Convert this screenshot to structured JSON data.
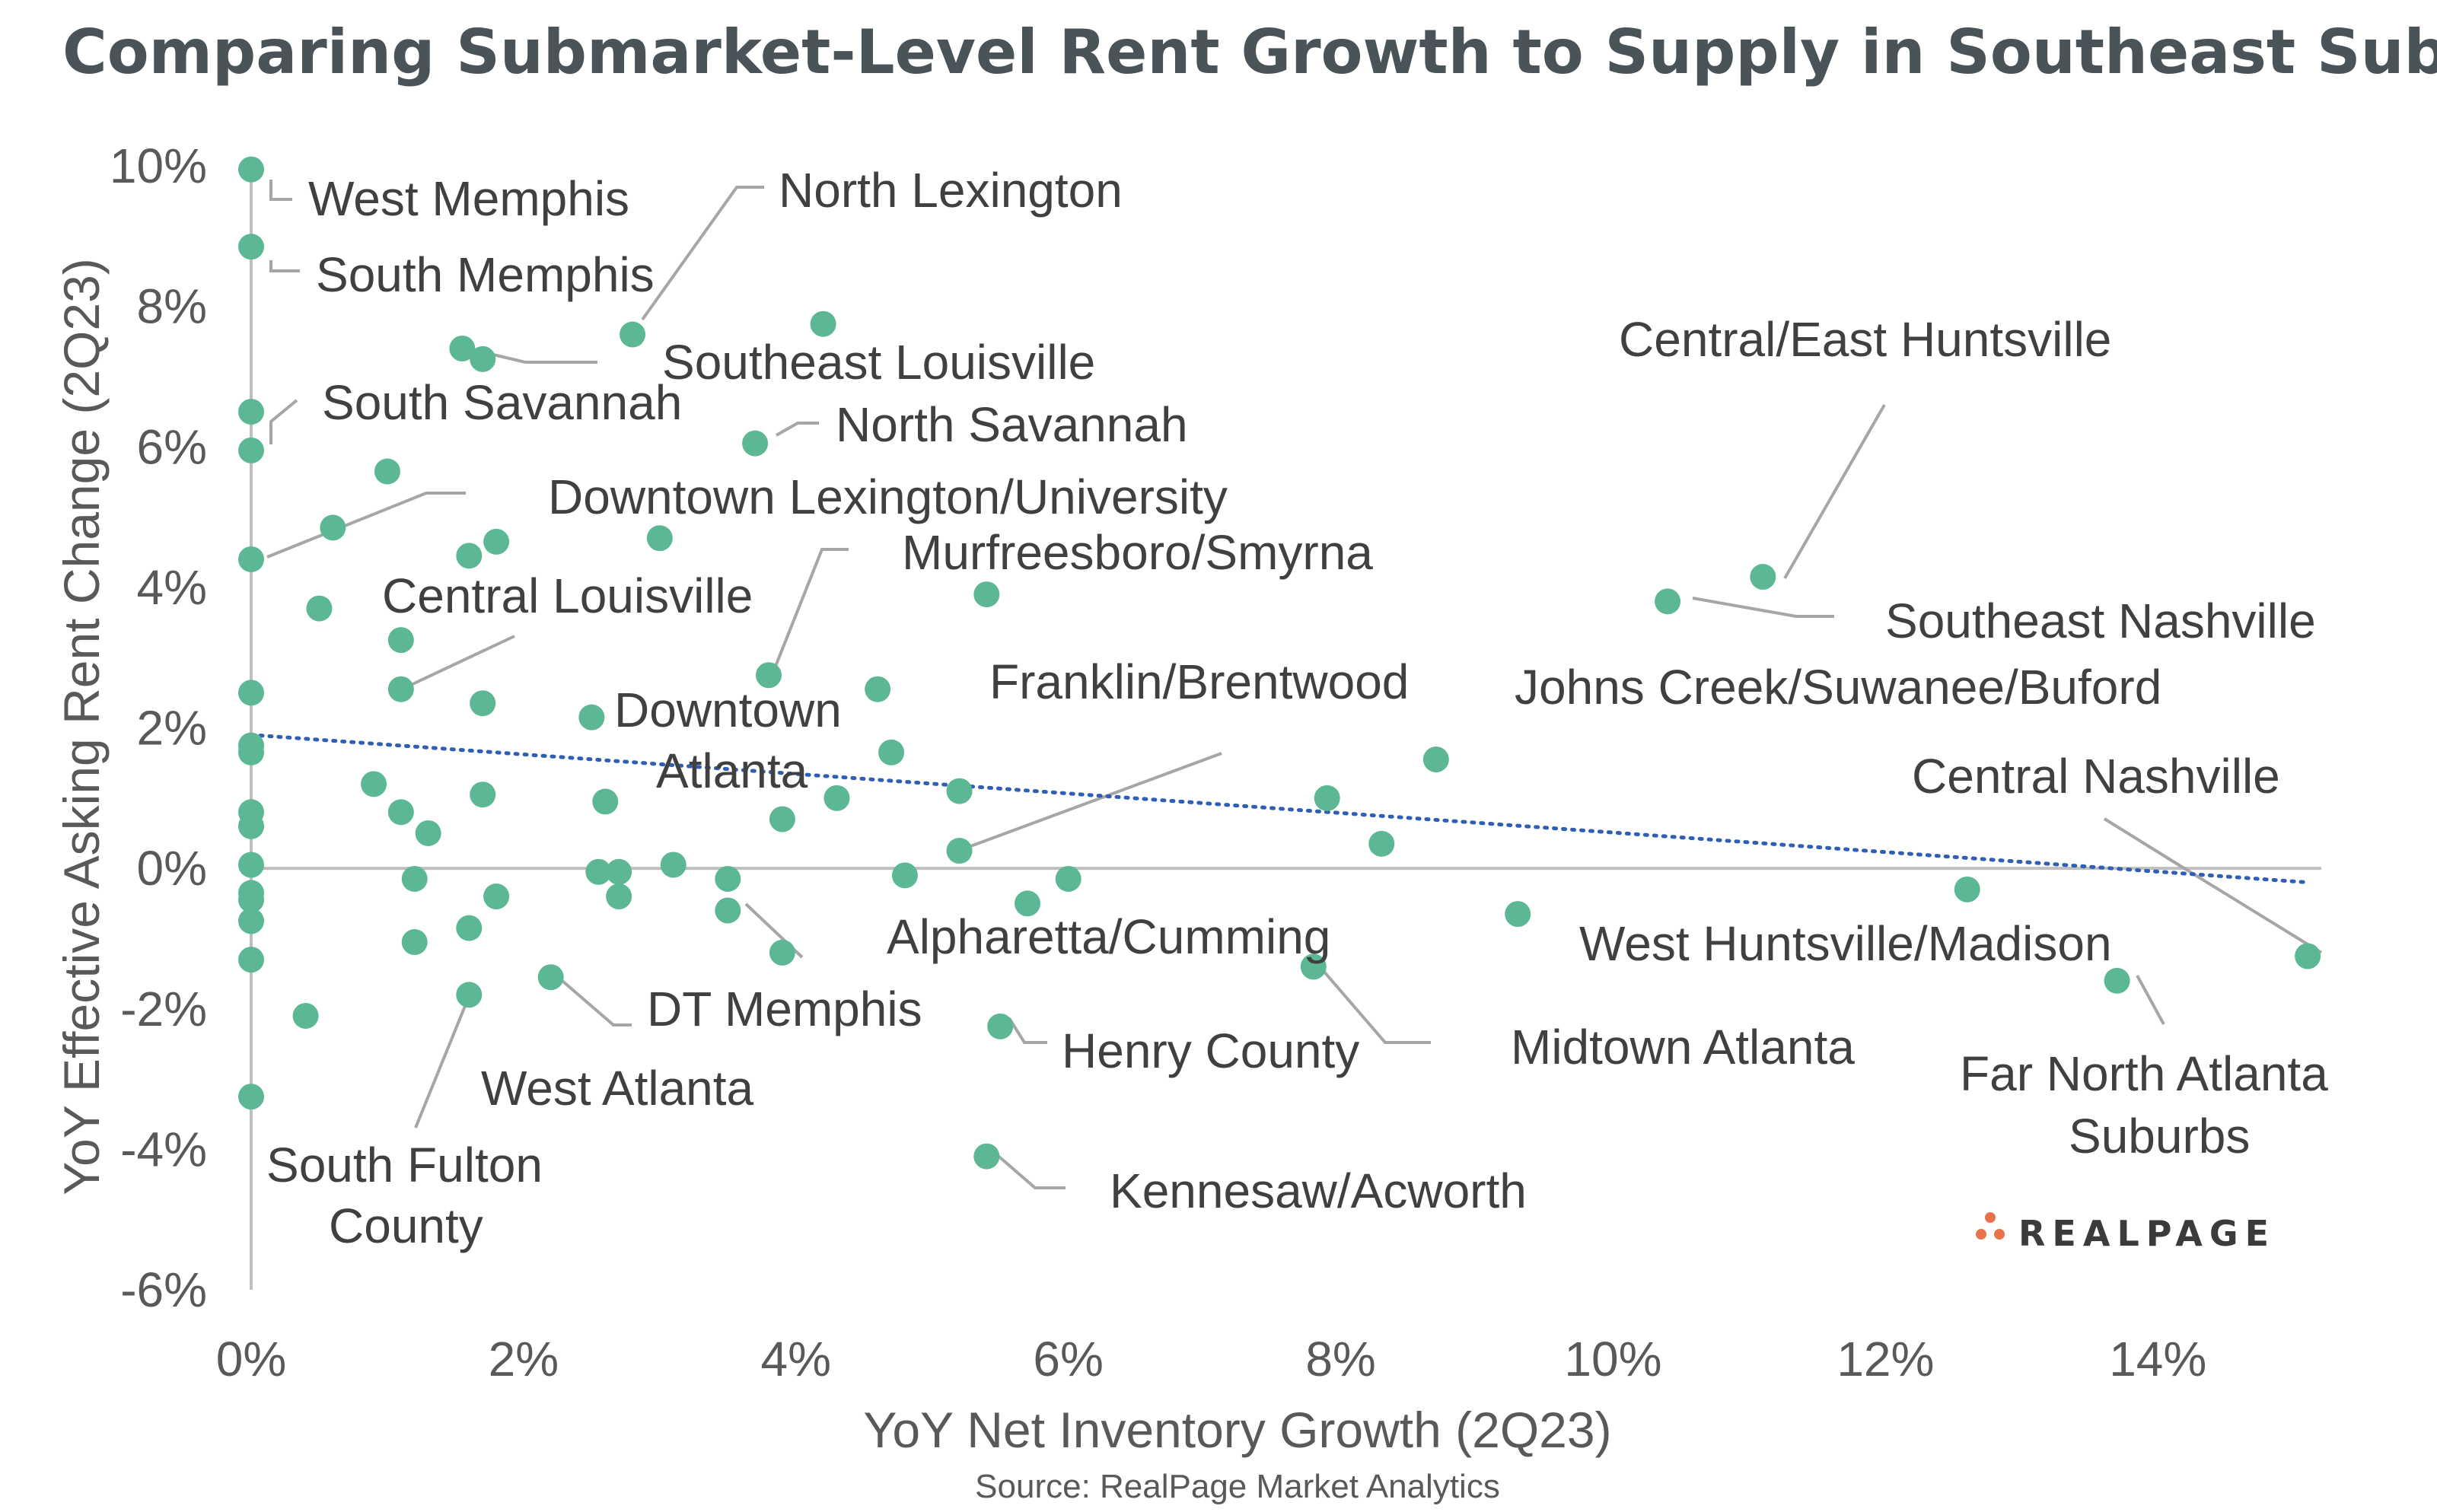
{
  "chart_data": {
    "type": "scatter",
    "title": "Comparing Submarket-Level Rent Growth to Supply in Southeast Submarkets",
    "xlabel": "YoY Net Inventory Growth (2Q23)",
    "ylabel": "YoY Effective Asking Rent Change (2Q23)",
    "source": "Source: RealPage Market Analytics",
    "brand": "REALPAGE",
    "xlim": [
      0,
      15.2
    ],
    "ylim": [
      -6,
      10
    ],
    "x_ticks": [
      0,
      2,
      4,
      6,
      8,
      10,
      12,
      14
    ],
    "y_ticks": [
      -6,
      -4,
      -2,
      0,
      2,
      4,
      6,
      8,
      10
    ],
    "x_tick_labels": [
      "0%",
      "2%",
      "4%",
      "6%",
      "8%",
      "10%",
      "12%",
      "14%"
    ],
    "y_tick_labels": [
      "-6%",
      "-4%",
      "-2%",
      "0%",
      "2%",
      "4%",
      "6%",
      "8%",
      "10%"
    ],
    "trendline": {
      "type": "linear",
      "x": [
        0,
        15.1
      ],
      "y": [
        1.9,
        -0.2
      ],
      "style": "dotted",
      "color": "#2f5fb3"
    },
    "colors": {
      "points": "#5cb894",
      "leader": "#a6a6a6",
      "zero_line": "#bfbfbf",
      "brand_dots": "#e8734a"
    },
    "points": [
      {
        "x": 0.0,
        "y": 9.95
      },
      {
        "x": 0.0,
        "y": 8.85
      },
      {
        "x": 0.0,
        "y": 6.5
      },
      {
        "x": 0.0,
        "y": 5.95
      },
      {
        "x": 0.0,
        "y": 4.4
      },
      {
        "x": 0.0,
        "y": 2.5
      },
      {
        "x": 0.0,
        "y": 1.75
      },
      {
        "x": 0.0,
        "y": 1.65
      },
      {
        "x": 0.0,
        "y": 0.8
      },
      {
        "x": 0.0,
        "y": 0.6
      },
      {
        "x": 0.0,
        "y": 0.05
      },
      {
        "x": 0.0,
        "y": -0.35
      },
      {
        "x": 0.0,
        "y": -0.45
      },
      {
        "x": 0.0,
        "y": -0.75
      },
      {
        "x": 0.0,
        "y": -1.3
      },
      {
        "x": 0.0,
        "y": -3.25
      },
      {
        "x": 0.4,
        "y": -2.1
      },
      {
        "x": 0.5,
        "y": 3.7
      },
      {
        "x": 0.6,
        "y": 4.85
      },
      {
        "x": 0.9,
        "y": 1.2
      },
      {
        "x": 1.0,
        "y": 5.65
      },
      {
        "x": 1.1,
        "y": 3.25
      },
      {
        "x": 1.1,
        "y": 2.55
      },
      {
        "x": 1.1,
        "y": 0.8
      },
      {
        "x": 1.2,
        "y": -0.15
      },
      {
        "x": 1.2,
        "y": -1.05
      },
      {
        "x": 1.3,
        "y": 0.5
      },
      {
        "x": 1.55,
        "y": 7.4
      },
      {
        "x": 1.6,
        "y": 4.45
      },
      {
        "x": 1.6,
        "y": -0.85
      },
      {
        "x": 1.6,
        "y": -1.8
      },
      {
        "x": 1.7,
        "y": 7.25
      },
      {
        "x": 1.7,
        "y": 2.35
      },
      {
        "x": 1.7,
        "y": 1.05
      },
      {
        "x": 1.8,
        "y": 4.65
      },
      {
        "x": 1.8,
        "y": -0.4
      },
      {
        "x": 2.2,
        "y": -1.55
      },
      {
        "x": 2.5,
        "y": 2.15
      },
      {
        "x": 2.55,
        "y": -0.05
      },
      {
        "x": 2.6,
        "y": 0.95
      },
      {
        "x": 2.7,
        "y": -0.05
      },
      {
        "x": 2.7,
        "y": -0.4
      },
      {
        "x": 2.8,
        "y": 7.6
      },
      {
        "x": 3.0,
        "y": 4.7
      },
      {
        "x": 3.1,
        "y": 0.05
      },
      {
        "x": 3.5,
        "y": -0.15
      },
      {
        "x": 3.5,
        "y": -0.6
      },
      {
        "x": 3.7,
        "y": 6.05
      },
      {
        "x": 3.8,
        "y": 2.75
      },
      {
        "x": 3.9,
        "y": 0.7
      },
      {
        "x": 3.9,
        "y": -1.2
      },
      {
        "x": 4.2,
        "y": 7.75
      },
      {
        "x": 4.3,
        "y": 1.0
      },
      {
        "x": 4.6,
        "y": 2.55
      },
      {
        "x": 4.7,
        "y": 1.65
      },
      {
        "x": 4.8,
        "y": -0.1
      },
      {
        "x": 5.2,
        "y": 1.1
      },
      {
        "x": 5.2,
        "y": 0.25
      },
      {
        "x": 5.4,
        "y": 3.9
      },
      {
        "x": 5.4,
        "y": -4.1
      },
      {
        "x": 5.5,
        "y": -2.25
      },
      {
        "x": 5.7,
        "y": -0.5
      },
      {
        "x": 6.0,
        "y": -0.15
      },
      {
        "x": 7.8,
        "y": -1.4
      },
      {
        "x": 7.9,
        "y": 1.0
      },
      {
        "x": 8.3,
        "y": 0.35
      },
      {
        "x": 8.7,
        "y": 1.55
      },
      {
        "x": 9.3,
        "y": -0.65
      },
      {
        "x": 10.4,
        "y": 3.8
      },
      {
        "x": 11.1,
        "y": 4.15
      },
      {
        "x": 12.6,
        "y": -0.3
      },
      {
        "x": 13.7,
        "y": -1.6
      },
      {
        "x": 15.1,
        "y": -1.25
      }
    ],
    "annotations": [
      {
        "text": "West Memphis",
        "x": 0.0,
        "y": 9.95
      },
      {
        "text": "South Memphis",
        "x": 0.0,
        "y": 8.85
      },
      {
        "text": "North Lexington",
        "x": 2.8,
        "y": 7.6
      },
      {
        "text": "Southeast Louisville",
        "x": 1.7,
        "y": 7.25
      },
      {
        "text": "South Savannah",
        "x": 0.0,
        "y": 5.95
      },
      {
        "text": "North Savannah",
        "x": 3.7,
        "y": 6.05
      },
      {
        "text": "Downtown Lexington/University",
        "x": 0.0,
        "y": 4.4
      },
      {
        "text": "Murfreesboro/Smyrna",
        "x": 3.8,
        "y": 2.75
      },
      {
        "text": "Central Louisville",
        "x": 1.1,
        "y": 2.55
      },
      {
        "text": "Downtown",
        "x": 2.5,
        "y": 2.15
      },
      {
        "text": "Atlanta",
        "x": 2.5,
        "y": 2.15
      },
      {
        "text": "Central/East Huntsville",
        "x": 11.1,
        "y": 4.15
      },
      {
        "text": "Southeast Nashville",
        "x": 10.4,
        "y": 3.8
      },
      {
        "text": "Franklin/Brentwood",
        "x": 5.2,
        "y": 0.25
      },
      {
        "text": "Johns Creek/Suwanee/Buford",
        "x": 8.7,
        "y": 1.55
      },
      {
        "text": "Central Nashville",
        "x": 15.1,
        "y": -1.25
      },
      {
        "text": "Alpharetta/Cumming",
        "x": 5.2,
        "y": 0.25
      },
      {
        "text": "West Huntsville/Madison",
        "x": 9.3,
        "y": -0.65
      },
      {
        "text": "DT Memphis",
        "x": 3.5,
        "y": -0.6
      },
      {
        "text": "Henry County",
        "x": 5.5,
        "y": -2.25
      },
      {
        "text": "Midtown Atlanta",
        "x": 7.8,
        "y": -1.4
      },
      {
        "text": "West Atlanta",
        "x": 2.2,
        "y": -1.55
      },
      {
        "text": "Far North Atlanta",
        "x": 13.7,
        "y": -1.6
      },
      {
        "text": "Suburbs",
        "x": 13.7,
        "y": -1.6
      },
      {
        "text": "South Fulton",
        "x": 1.6,
        "y": -1.8
      },
      {
        "text": "County",
        "x": 1.6,
        "y": -1.8
      },
      {
        "text": "Kennesaw/Acworth",
        "x": 5.4,
        "y": -4.1
      }
    ],
    "grid": false,
    "legend": "none"
  }
}
